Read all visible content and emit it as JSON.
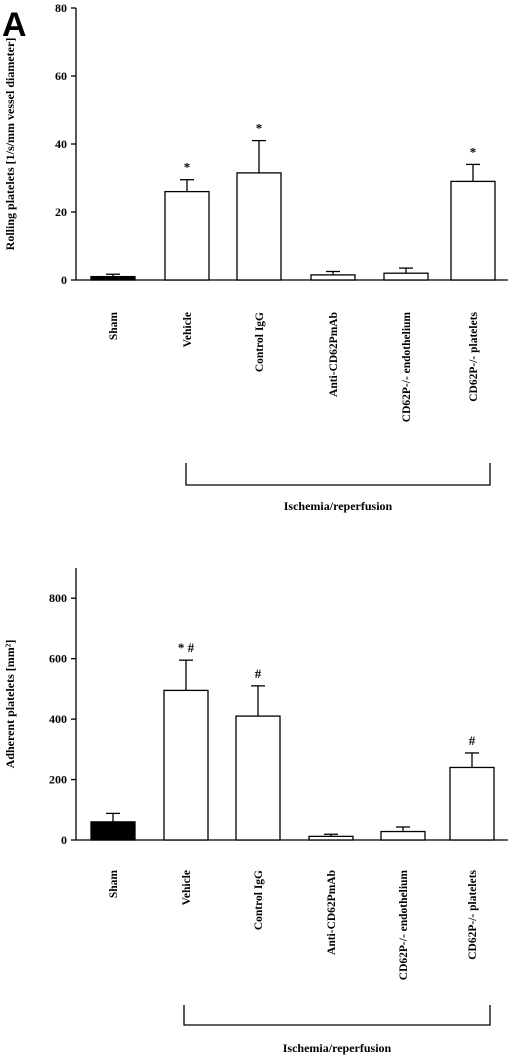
{
  "panel_label": "A",
  "chart_data": [
    {
      "type": "bar",
      "ylabel": "Rolling platelets [1/s/mm vessel diameter]",
      "ylim": [
        0,
        80
      ],
      "yticks": [
        "0",
        "20",
        "40",
        "60",
        "80"
      ],
      "categories": [
        "Sham",
        "Vehicle",
        "Control IgG",
        "Anti-CD62PmAb",
        "CD62P-/- endothelium",
        "CD62P-/- platelets"
      ],
      "values": [
        1,
        26,
        31.5,
        1.5,
        2,
        29
      ],
      "errors": [
        0.7,
        3.5,
        9.5,
        1,
        1.5,
        5
      ],
      "annotations": [
        "",
        "*",
        "*",
        "",
        "",
        "*"
      ],
      "fill": [
        "#000000",
        "#ffffff",
        "#ffffff",
        "#ffffff",
        "#ffffff",
        "#ffffff"
      ],
      "group_label": "Ischemia/reperfusion"
    },
    {
      "type": "bar",
      "ylabel": "Adherent platelets [mm²]",
      "ylim": [
        0,
        900
      ],
      "yticks": [
        "0",
        "200",
        "400",
        "600",
        "800"
      ],
      "categories": [
        "Sham",
        "Vehicle",
        "Control IgG",
        "Anti-CD62PmAb",
        "CD62P-/- endothelium",
        "CD62P-/- platelets"
      ],
      "values": [
        60,
        495,
        410,
        12,
        28,
        240
      ],
      "errors": [
        28,
        100,
        100,
        7,
        15,
        48
      ],
      "annotations": [
        "",
        "* #",
        "#",
        "",
        "",
        "#"
      ],
      "fill": [
        "#000000",
        "#ffffff",
        "#ffffff",
        "#ffffff",
        "#ffffff",
        "#ffffff"
      ],
      "group_label": "Ischemia/reperfusion"
    }
  ]
}
